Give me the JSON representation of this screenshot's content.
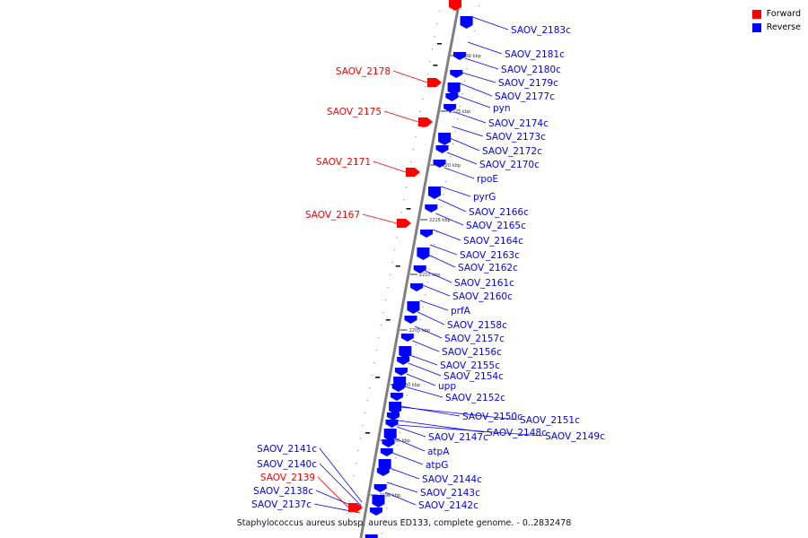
{
  "legend": [
    {
      "label": "Forward",
      "color": "#ff0000"
    },
    {
      "label": "Reverse",
      "color": "#0000ff"
    }
  ],
  "caption": "Staphylococcus aureus subsp. aureus ED133, complete genome. - 0..2832478",
  "scale_ticks": [
    "2230 kbp",
    "2225 kbp",
    "2220 kbp",
    "2215 kbp",
    "2210 kbp",
    "2205 kbp",
    "2200 kbp",
    "2195 kbp",
    "2190 kbp"
  ],
  "forward_genes": [
    "SAOV_2178",
    "SAOV_2175",
    "SAOV_2171",
    "SAOV_2167",
    "SAOV_2139"
  ],
  "reverse_genes": [
    "SAOV_2183c",
    "SAOV_2181c",
    "SAOV_2180c",
    "SAOV_2179c",
    "SAOV_2177c",
    "pyn",
    "SAOV_2174c",
    "SAOV_2173c",
    "SAOV_2172c",
    "SAOV_2170c",
    "rpoE",
    "pyrG",
    "SAOV_2166c",
    "SAOV_2165c",
    "SAOV_2164c",
    "SAOV_2163c",
    "SAOV_2162c",
    "SAOV_2161c",
    "SAOV_2160c",
    "prfA",
    "SAOV_2158c",
    "SAOV_2157c",
    "SAOV_2156c",
    "SAOV_2155c",
    "SAOV_2154c",
    "upp",
    "SAOV_2152c",
    "SAOV_2150c",
    "SAOV_2151c",
    "SAOV_2148c",
    "SAOV_2149c",
    "SAOV_2147c",
    "atpA",
    "atpG",
    "SAOV_2144c",
    "SAOV_2143c",
    "SAOV_2142c",
    "SAOV_2141c",
    "SAOV_2140c",
    "SAOV_2138c",
    "SAOV_2137c"
  ],
  "colors": {
    "forward": "#ff0000",
    "reverse": "#0000ff",
    "backbone": "#888888"
  }
}
